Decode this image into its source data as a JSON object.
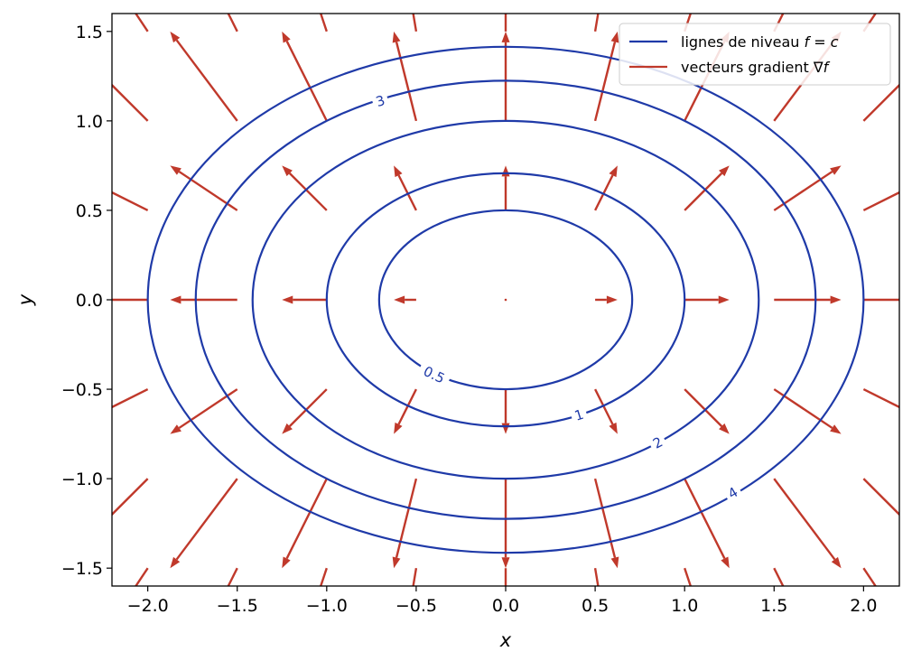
{
  "chart_data": {
    "type": "contour+quiver",
    "function": "f = x^2 + 2 y^2",
    "xlabel": "x",
    "ylabel": "y",
    "xlim": [
      -2.2,
      2.2
    ],
    "ylim": [
      -1.6,
      1.6
    ],
    "xticks": [
      -2.0,
      -1.5,
      -1.0,
      -0.5,
      0.0,
      0.5,
      1.0,
      1.5,
      2.0
    ],
    "yticks": [
      -1.5,
      -1.0,
      -0.5,
      0.0,
      0.5,
      1.0,
      1.5
    ],
    "xtick_labels": [
      "−2.0",
      "−1.5",
      "−1.0",
      "−0.5",
      "0.0",
      "0.5",
      "1.0",
      "1.5",
      "2.0"
    ],
    "ytick_labels": [
      "−1.5",
      "−1.0",
      "−0.5",
      "0.0",
      "0.5",
      "1.0",
      "1.5"
    ],
    "contour_levels": [
      0.5,
      1,
      2,
      3,
      4
    ],
    "contour_labels": [
      {
        "level": 0.5,
        "text": "0.5",
        "x": -0.4,
        "y": -0.42
      },
      {
        "level": 1,
        "text": "1",
        "x": 0.41,
        "y": -0.645
      },
      {
        "level": 2,
        "text": "2",
        "x": 0.85,
        "y": -0.8
      },
      {
        "level": 3,
        "text": "3",
        "x": -0.7,
        "y": 1.11
      },
      {
        "level": 4,
        "text": "4",
        "x": 1.27,
        "y": -1.08
      }
    ],
    "quiver_grid": {
      "x": [
        -2.0,
        -1.5,
        -1.0,
        -0.5,
        0.0,
        0.5,
        1.0,
        1.5,
        2.0
      ],
      "y": [
        -1.5,
        -1.0,
        -0.5,
        0.0,
        0.5,
        1.0,
        1.5
      ]
    },
    "legend": {
      "placement": "top-right",
      "entries": [
        {
          "label": "lignes de niveau f = c",
          "color": "#1f3aa8",
          "text_main": "lignes de niveau ",
          "text_math": "f = c"
        },
        {
          "label": "vecteurs gradient ∇f",
          "color": "#c0392b",
          "text_main": "vecteurs gradient ∇",
          "text_math": "f"
        }
      ]
    },
    "colors": {
      "contour": "#1f3aa8",
      "gradient": "#c0392b"
    },
    "grid": false
  }
}
